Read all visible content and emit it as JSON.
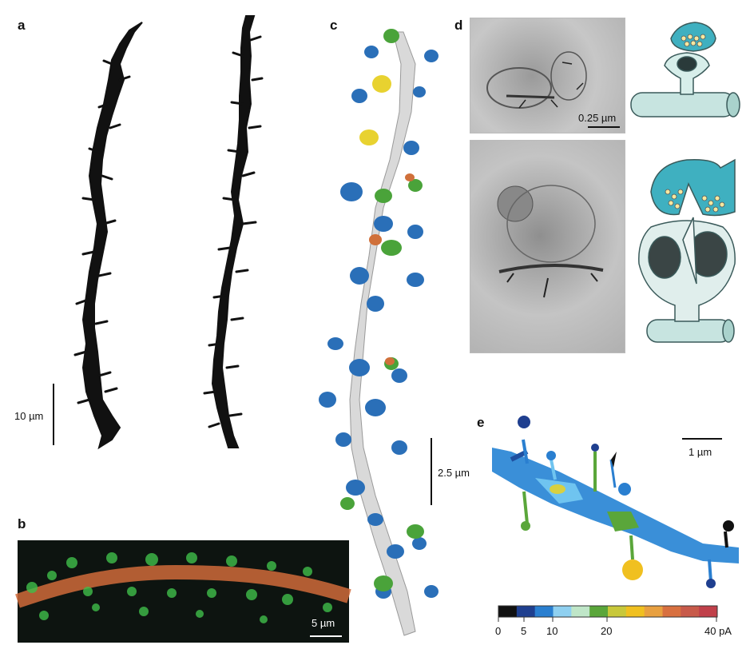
{
  "panels": {
    "a": {
      "label": "a",
      "scale_label": "10 µm"
    },
    "b": {
      "label": "b",
      "scale_label": "5 µm"
    },
    "c": {
      "label": "c",
      "scale_label": "2.5 µm"
    },
    "d": {
      "label": "d",
      "scale_label": "0.25 µm"
    },
    "e": {
      "label": "e",
      "scale_label": "1 µm",
      "colorbar_ticks": [
        "0",
        "5",
        "10",
        "20",
        "40 pA"
      ],
      "colorbar_colors": [
        "#111111",
        "#1f3f8f",
        "#2a7fd0",
        "#8fd0f0",
        "#bfe6c8",
        "#5aa63a",
        "#c8c83a",
        "#f0c020",
        "#e8a040",
        "#d87040",
        "#c85a4a",
        "#c0404a"
      ]
    }
  }
}
